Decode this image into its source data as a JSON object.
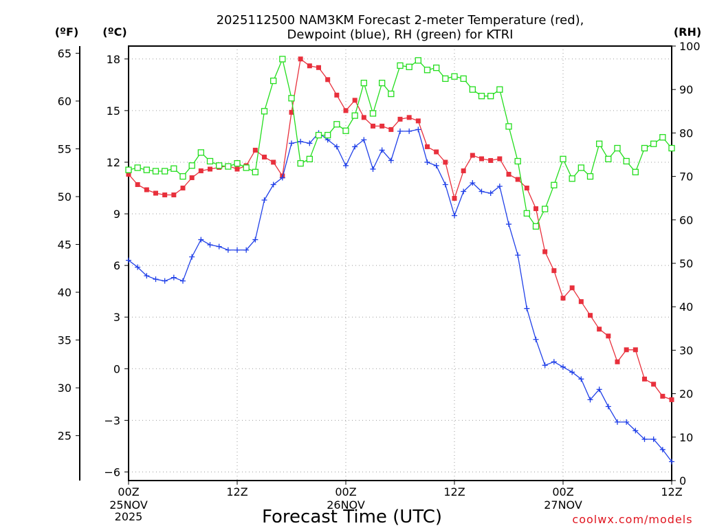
{
  "chart_data": {
    "type": "line",
    "title_line1": "2025112500 NAM3KM Forecast 2-meter Temperature (red),",
    "title_line2": "Dewpoint (blue), RH (green) for KTRI",
    "xlabel": "Forecast Time (UTC)",
    "credit": "coolwx.com/models",
    "units": {
      "fahrenheit": "(ºF)",
      "celsius": "(ºC)",
      "rh": "(RH)"
    },
    "x_range_hours": [
      0,
      60
    ],
    "celsius_range": [
      -6.5,
      18.75
    ],
    "rh_range": [
      0,
      100
    ],
    "x_ticks": [
      {
        "hour": 0,
        "line1": "00Z",
        "line2": "25NOV",
        "line3": "2025"
      },
      {
        "hour": 12,
        "line1": "12Z",
        "line2": "",
        "line3": ""
      },
      {
        "hour": 24,
        "line1": "00Z",
        "line2": "26NOV",
        "line3": ""
      },
      {
        "hour": 36,
        "line1": "12Z",
        "line2": "",
        "line3": ""
      },
      {
        "hour": 48,
        "line1": "00Z",
        "line2": "27NOV",
        "line3": ""
      },
      {
        "hour": 60,
        "line1": "12Z",
        "line2": "",
        "line3": ""
      }
    ],
    "celsius_ticks": [
      18,
      15,
      12,
      9,
      6,
      3,
      0,
      -3,
      -6
    ],
    "celsius_tick_labels": [
      "18",
      "15",
      "12",
      "9",
      "6",
      "3",
      "0",
      "−3",
      "−6"
    ],
    "fahrenheit_ticks": [
      65,
      60,
      55,
      50,
      45,
      40,
      35,
      30,
      25
    ],
    "rh_ticks": [
      100,
      90,
      80,
      70,
      60,
      50,
      40,
      30,
      20,
      10,
      0
    ],
    "hours": [
      0,
      1,
      2,
      3,
      4,
      5,
      6,
      7,
      8,
      9,
      10,
      11,
      12,
      13,
      14,
      15,
      16,
      17,
      18,
      19,
      20,
      21,
      22,
      23,
      24,
      25,
      26,
      27,
      28,
      29,
      30,
      31,
      32,
      33,
      34,
      35,
      36,
      37,
      38,
      39,
      40,
      41,
      42,
      43,
      44,
      45,
      46,
      47,
      48,
      49,
      50,
      51,
      52,
      53,
      54,
      55,
      56,
      57,
      58,
      59,
      60
    ],
    "series": [
      {
        "name": "Temperature (C)",
        "color": "#e8303c",
        "marker": "filled-square",
        "values": [
          11.3,
          10.7,
          10.4,
          10.2,
          10.1,
          10.1,
          10.5,
          11.1,
          11.5,
          11.6,
          11.7,
          11.8,
          11.6,
          11.8,
          12.7,
          12.3,
          12.0,
          11.2,
          14.9,
          18.0,
          17.6,
          17.5,
          16.8,
          15.9,
          15.0,
          15.6,
          14.6,
          14.1,
          14.1,
          13.9,
          14.5,
          14.6,
          14.4,
          12.9,
          12.6,
          12.0,
          9.9,
          11.5,
          12.4,
          12.2,
          12.1,
          12.2,
          11.3,
          11.0,
          10.5,
          9.3,
          6.8,
          5.7,
          4.1,
          4.7,
          3.9,
          3.1,
          2.3,
          1.9,
          0.4,
          1.1,
          1.1,
          -0.6,
          -0.9,
          -1.6,
          -1.8
        ]
      },
      {
        "name": "Dewpoint (C)",
        "color": "#1f3fe8",
        "marker": "plus",
        "values": [
          6.3,
          5.9,
          5.4,
          5.2,
          5.1,
          5.3,
          5.1,
          6.5,
          7.5,
          7.2,
          7.1,
          6.9,
          6.9,
          6.9,
          7.5,
          9.8,
          10.7,
          11.1,
          13.1,
          13.2,
          13.1,
          13.7,
          13.3,
          12.9,
          11.8,
          12.9,
          13.3,
          11.6,
          12.7,
          12.1,
          13.8,
          13.8,
          13.9,
          12.0,
          11.8,
          10.7,
          8.9,
          10.3,
          10.8,
          10.3,
          10.2,
          10.6,
          8.4,
          6.6,
          3.5,
          1.7,
          0.2,
          0.4,
          0.1,
          -0.2,
          -0.6,
          -1.8,
          -1.2,
          -2.2,
          -3.1,
          -3.1,
          -3.6,
          -4.1,
          -4.1,
          -4.7,
          -5.4
        ]
      },
      {
        "name": "RH (%)",
        "color": "#22dd1c",
        "marker": "open-square",
        "values": [
          71.5,
          72,
          71.5,
          71.2,
          71.2,
          71.8,
          70,
          72.5,
          75.5,
          73.5,
          72.5,
          72.3,
          73,
          72,
          71,
          85,
          92,
          97,
          88,
          73,
          74,
          79.5,
          79.5,
          82,
          80.5,
          84,
          91.5,
          84.5,
          91.5,
          89,
          95.5,
          95.2,
          96.7,
          94.5,
          95,
          92.5,
          93,
          92.5,
          90,
          88.5,
          88.5,
          90,
          81.5,
          73.5,
          61.5,
          58.5,
          62.5,
          68,
          74,
          69.5,
          72,
          70,
          77.5,
          74,
          76.5,
          73.5,
          71,
          76.5,
          77.5,
          79,
          76.5
        ]
      }
    ]
  }
}
